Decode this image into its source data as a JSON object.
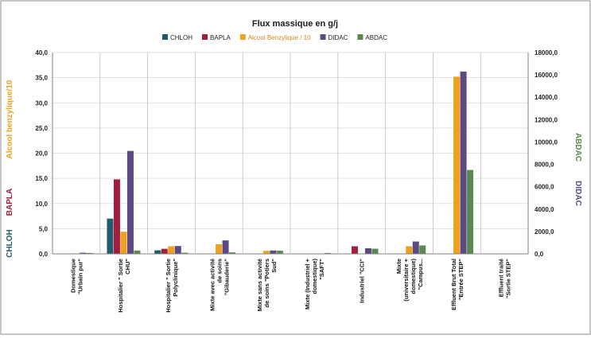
{
  "chart_data": {
    "type": "bar",
    "title": "Flux massique en g/j",
    "categories": [
      [
        "Domestique",
        "\"Urbain pur\""
      ],
      [
        "Hospitalier \" Sortie",
        "CHU\""
      ],
      [
        "Hospitalier \" Sortie",
        "Polyclinique\""
      ],
      [
        "Mixte avec activité",
        "de soins",
        "\"Gibauderie\""
      ],
      [
        "Mixte sans activité",
        "de soins \"Potiers",
        "Sud\""
      ],
      [
        "Mixte (Industriel +",
        "domestique)",
        "\"SAFT\""
      ],
      [
        "Industriel \"CCI\""
      ],
      [
        "Mixte",
        "(universitaire +",
        "domestique)",
        "\"Campus..."
      ],
      [
        "Effluent Brut Total",
        "\"Entrée STEP\""
      ],
      [
        "Effluent traité",
        "\"Sortie STEP\""
      ]
    ],
    "series": [
      {
        "name": "CHLOH",
        "color": "#1f5d6b",
        "axis": "left",
        "values": [
          0,
          7.0,
          0.7,
          0,
          0,
          0,
          0,
          0,
          0,
          0
        ]
      },
      {
        "name": "BAPLA",
        "color": "#a51d3c",
        "axis": "left",
        "values": [
          0,
          14.8,
          1.0,
          0,
          0,
          0,
          1.5,
          0,
          0,
          0
        ]
      },
      {
        "name": "Alcool Benzylique / 10",
        "color": "#f0a020",
        "axis": "left",
        "values": [
          0.1,
          4.4,
          1.5,
          1.9,
          0.6,
          0,
          0,
          1.5,
          35.2,
          0
        ]
      },
      {
        "name": "DIDAC",
        "color": "#5a4a80",
        "axis": "right",
        "values": [
          100,
          9200,
          700,
          1200,
          300,
          0,
          500,
          1100,
          16300,
          0
        ]
      },
      {
        "name": "ABDAC",
        "color": "#5a8a50",
        "axis": "right",
        "values": [
          80,
          300,
          100,
          130,
          280,
          80,
          460,
          750,
          7500,
          0
        ]
      }
    ],
    "y_left": {
      "min": 0,
      "max": 40,
      "ticks": [
        "0,0",
        "5,0",
        "10,0",
        "15,0",
        "20,0",
        "25,0",
        "30,0",
        "35,0",
        "40,0"
      ]
    },
    "y_right": {
      "min": 0,
      "max": 18000,
      "ticks": [
        "0,0",
        "2000,0",
        "4000,0",
        "6000,0",
        "8000,0",
        "10000,0",
        "12000,0",
        "14000,0",
        "16000,0",
        "18000,0"
      ]
    },
    "left_axis_labels": [
      {
        "text": "CHLOH",
        "color": "#1f5d6b"
      },
      {
        "text": "BAPLA",
        "color": "#a51d3c"
      },
      {
        "text": "Alcool benzylique/10",
        "color": "#f0a020"
      }
    ],
    "right_axis_labels": [
      {
        "text": "DIDAC",
        "color": "#5a4a80"
      },
      {
        "text": "ABDAC",
        "color": "#5a8a50"
      }
    ],
    "grid": true,
    "legend_position": "top"
  }
}
